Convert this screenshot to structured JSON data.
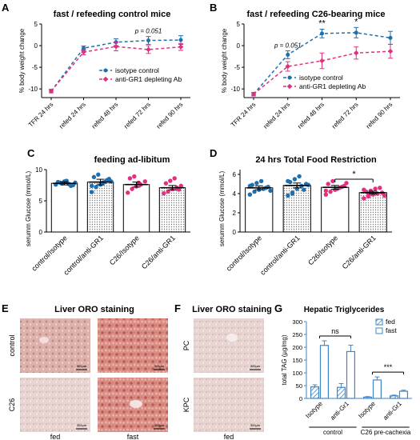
{
  "panels": {
    "A": {
      "letter": "A",
      "title": "fast / refeeding control mice"
    },
    "B": {
      "letter": "B",
      "title": "fast / refeeding C26-bearing mice"
    },
    "C": {
      "letter": "C",
      "title": "feeding ad-libitum"
    },
    "D": {
      "letter": "D",
      "title": "24 hrs Total Food Restriction"
    },
    "E": {
      "letter": "E",
      "title": "Liver ORO staining",
      "row_labels": [
        "control",
        "C26"
      ],
      "col_labels": [
        "fed",
        "fast"
      ],
      "scale_bar": "300μm"
    },
    "F": {
      "letter": "F",
      "title": "Liver ORO staining",
      "row_labels": [
        "PC",
        "KPC"
      ],
      "col_labels": [
        "fed"
      ],
      "scale_bar": "300μm"
    },
    "G": {
      "letter": "G",
      "title": "Hepatic Triglycerides"
    }
  },
  "colors": {
    "isotype": "#1f6fae",
    "antigr1": "#e0307f",
    "bar_g": "#3f86c6",
    "micro_pink": "#d98d83",
    "micro_pale": "#ecdcda"
  },
  "chart_data": [
    {
      "id": "A",
      "type": "line",
      "title": "fast / refeeding control mice",
      "ylabel": "% body weight change",
      "ylim": [
        -12,
        5
      ],
      "yticks": [
        -10,
        -5,
        0,
        5
      ],
      "categories": [
        "TFR 24 hrs",
        "refed 24 hrs",
        "refed 48 hrs",
        "refed 72 hrs",
        "refed 90 hrs"
      ],
      "series": [
        {
          "name": "isotype control",
          "values": [
            -10.5,
            -0.6,
            0.8,
            1.2,
            1.3
          ],
          "errors": [
            0.4,
            0.5,
            0.8,
            0.9,
            1.0
          ],
          "style": "dashed",
          "color": "#1f6fae"
        },
        {
          "name": "anti-GR1 depleting Ab",
          "values": [
            -10.5,
            -1.5,
            -0.2,
            -0.9,
            -0.3
          ],
          "errors": [
            0.4,
            0.6,
            1.0,
            0.9,
            0.8
          ],
          "style": "dashed",
          "color": "#e0307f"
        }
      ],
      "annotations": [
        {
          "text": "p = 0.051",
          "at": "refed 72 hrs"
        }
      ]
    },
    {
      "id": "B",
      "type": "line",
      "title": "fast / refeeding C26-bearing mice",
      "ylabel": "% body weight change",
      "ylim": [
        -12,
        5
      ],
      "yticks": [
        -10,
        -5,
        0,
        5
      ],
      "categories": [
        "TFR 24 hrs",
        "refed 24 hrs",
        "refed 48 hrs",
        "refed 72 hrs",
        "refed 90 hrs"
      ],
      "series": [
        {
          "name": "isotype control",
          "values": [
            -11.2,
            -2.1,
            2.8,
            3.0,
            1.8
          ],
          "errors": [
            0.4,
            0.9,
            1.0,
            1.2,
            1.5
          ],
          "style": "dashed",
          "color": "#1f6fae"
        },
        {
          "name": "anti-GR1 depleting Ab",
          "values": [
            -11.2,
            -4.8,
            -3.5,
            -1.7,
            -1.3
          ],
          "errors": [
            0.4,
            1.1,
            1.8,
            1.4,
            1.6
          ],
          "style": "dashed",
          "color": "#e0307f"
        }
      ],
      "annotations": [
        {
          "text": "p = 0.051",
          "at": "refed 24 hrs"
        },
        {
          "text": "**",
          "at": "refed 48 hrs"
        },
        {
          "text": "*",
          "at": "refed 72 hrs"
        }
      ],
      "legend": "bottom-right"
    },
    {
      "id": "C",
      "type": "bar",
      "title": "feeding ad-libitum",
      "ylabel": "serumm Glucose (mmol/L)",
      "ylim": [
        0,
        10
      ],
      "yticks": [
        0,
        5,
        10
      ],
      "categories": [
        "control/Isotype",
        "control/anti-GR1",
        "C26/Isotype",
        "C26/anti-GR1"
      ],
      "values": [
        7.8,
        8.0,
        7.6,
        7.1
      ],
      "errors": [
        0.25,
        0.45,
        0.4,
        0.35
      ],
      "points": [
        [
          7.6,
          7.9,
          8.1,
          7.7,
          7.5,
          8.0,
          7.8,
          8.2,
          7.4,
          7.9
        ],
        [
          6.4,
          7.2,
          7.6,
          8.0,
          8.5,
          8.8,
          9.2,
          7.9,
          8.3,
          8.1,
          7.4
        ],
        [
          6.3,
          6.9,
          7.3,
          7.6,
          8.1,
          8.6,
          8.9,
          7.9
        ],
        [
          6.2,
          6.5,
          6.9,
          7.1,
          7.4,
          7.8,
          8.2,
          8.6,
          6.8
        ]
      ],
      "point_colors": [
        "#1f6fae",
        "#1f6fae",
        "#e0307f",
        "#e0307f"
      ]
    },
    {
      "id": "D",
      "type": "bar",
      "title": "24 hrs Total Food Restriction",
      "ylabel": "serumm Glucose (mmol/L)",
      "ylim": [
        0,
        6.5
      ],
      "yticks": [
        0,
        2,
        4,
        6
      ],
      "categories": [
        "control/Isotype",
        "control/anti-GR1",
        "C26/Isotype",
        "C26/anti-GR1"
      ],
      "values": [
        4.6,
        4.85,
        4.65,
        4.1
      ],
      "errors": [
        0.2,
        0.25,
        0.2,
        0.15
      ],
      "points": [
        [
          3.9,
          4.2,
          4.4,
          4.5,
          4.7,
          4.9,
          5.1,
          5.3,
          4.6,
          4.3,
          4.8
        ],
        [
          3.8,
          4.1,
          4.5,
          4.8,
          5.0,
          5.2,
          5.5,
          5.8,
          4.4,
          4.9,
          5.3,
          4.0
        ],
        [
          3.9,
          4.2,
          4.4,
          4.6,
          4.8,
          5.0,
          5.3,
          4.5,
          4.7,
          5.1,
          4.3
        ],
        [
          3.5,
          3.7,
          3.9,
          4.0,
          4.1,
          4.2,
          4.3,
          4.5,
          4.6,
          3.8,
          4.4,
          4.0
        ]
      ],
      "point_colors": [
        "#1f6fae",
        "#1f6fae",
        "#e0307f",
        "#e0307f"
      ],
      "annotations": [
        {
          "text": "*",
          "between": [
            "C26/Isotype",
            "C26/anti-GR1"
          ]
        }
      ]
    },
    {
      "id": "G",
      "type": "bar",
      "title": "Hepatic Triglycerides",
      "ylabel": "total TAG (µg/mg)",
      "ylim": [
        0,
        300
      ],
      "yticks": [
        0,
        50,
        100,
        150,
        200,
        250,
        300
      ],
      "categories": [
        "Isotype",
        "anti-Gr1",
        "Isotype",
        "anti-Gr1"
      ],
      "groups": [
        "control",
        "C26 pre-cachexia"
      ],
      "series": [
        {
          "name": "fed",
          "values": [
            45,
            43,
            5,
            10
          ],
          "errors": [
            8,
            15,
            2,
            3
          ],
          "pattern": "hatched"
        },
        {
          "name": "fast",
          "values": [
            207,
            183,
            72,
            28
          ],
          "errors": [
            18,
            25,
            12,
            4
          ],
          "pattern": "open"
        }
      ],
      "annotations": [
        {
          "text": "ns",
          "group": "control"
        },
        {
          "text": "***",
          "group": "C26 pre-cachexia"
        }
      ],
      "legend": "top-right"
    }
  ]
}
